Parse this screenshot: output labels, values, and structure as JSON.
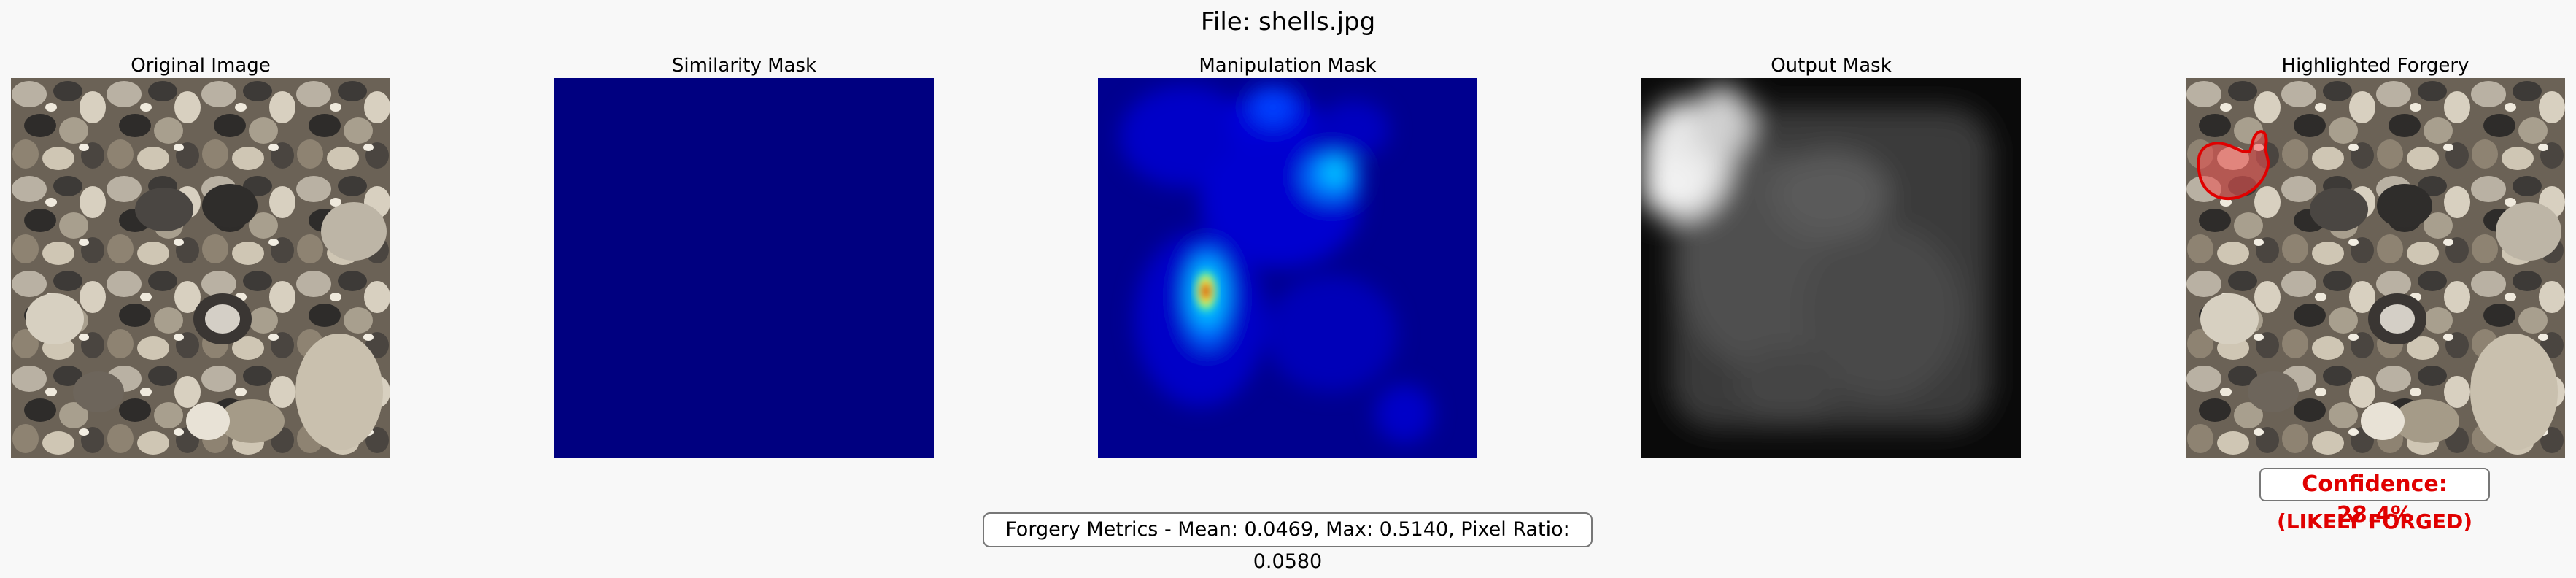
{
  "figure": {
    "title": "File: shells.jpg"
  },
  "panels": [
    {
      "title": "Original Image",
      "image": "photo of beach pebbles and shells"
    },
    {
      "title": "Similarity Mask",
      "image": "uniform dark blue mask"
    },
    {
      "title": "Manipulation Mask",
      "image": "jet colormap heatmap with red hotspot at left-center"
    },
    {
      "title": "Output Mask",
      "image": "blurred grayscale mask with bright region at top-left"
    },
    {
      "title": "Highlighted Forgery",
      "image": "pebble photo with red outlined region at upper-left"
    }
  ],
  "result": {
    "confidence": "Confidence: 28.4%",
    "verdict": "(LIKELY FORGED)",
    "metrics": "Forgery Metrics - Mean: 0.0469, Max: 0.5140, Pixel Ratio: 0.0580"
  },
  "colors": {
    "background": "#f8f8f8",
    "alert": "#e00000",
    "similarity_mask": "#000080"
  }
}
